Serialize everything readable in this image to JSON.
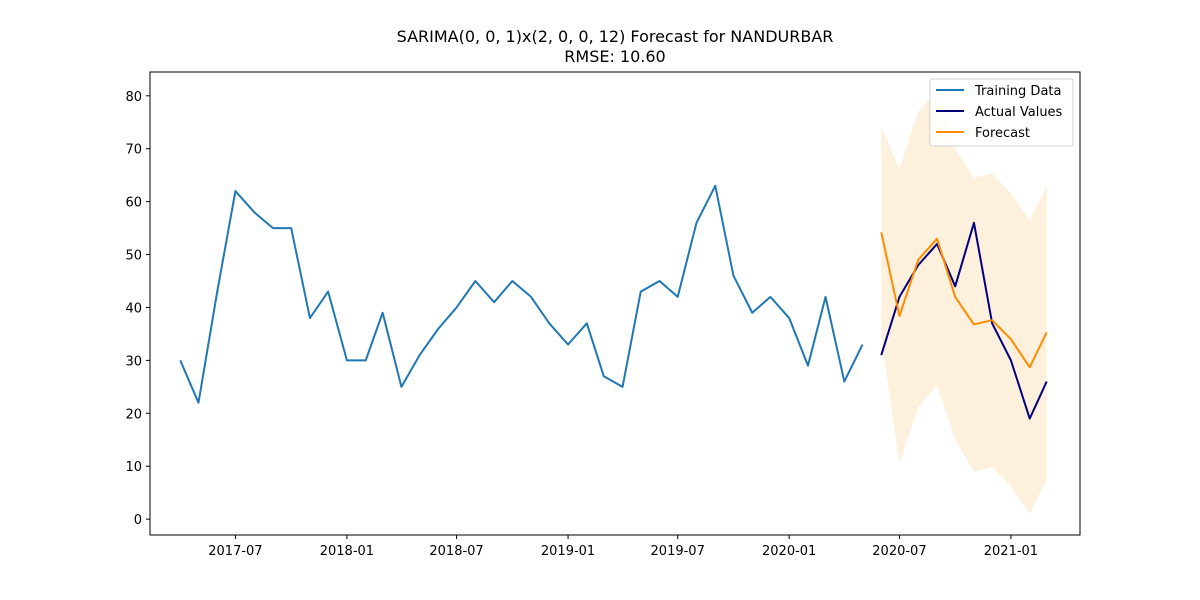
{
  "chart_data": {
    "type": "line",
    "title": "SARIMA(0, 0, 1)x(2, 0, 0, 12) Forecast for NANDURBAR",
    "subtitle": "RMSE: 10.60",
    "xlabel": "",
    "ylabel": "",
    "xlim": [
      "2017-02-10",
      "2021-04-25"
    ],
    "ylim": [
      -3,
      84.5
    ],
    "x_ticks": [
      "2017-07",
      "2018-01",
      "2018-07",
      "2019-01",
      "2019-07",
      "2020-01",
      "2020-07",
      "2021-01"
    ],
    "y_ticks": [
      0,
      10,
      20,
      30,
      40,
      50,
      60,
      70,
      80
    ],
    "grid": false,
    "legend_position": "top-right",
    "series": [
      {
        "name": "Training Data",
        "color": "#1f77b4",
        "x": [
          "2017-04",
          "2017-05",
          "2017-06",
          "2017-07",
          "2017-08",
          "2017-09",
          "2017-10",
          "2017-11",
          "2017-12",
          "2018-01",
          "2018-02",
          "2018-03",
          "2018-04",
          "2018-05",
          "2018-06",
          "2018-07",
          "2018-08",
          "2018-09",
          "2018-10",
          "2018-11",
          "2018-12",
          "2019-01",
          "2019-02",
          "2019-03",
          "2019-04",
          "2019-05",
          "2019-06",
          "2019-07",
          "2019-08",
          "2019-09",
          "2019-10",
          "2019-11",
          "2019-12",
          "2020-01",
          "2020-02",
          "2020-03",
          "2020-04",
          "2020-05"
        ],
        "values": [
          30,
          22,
          43,
          62,
          58,
          55,
          55,
          38,
          43,
          30,
          30,
          39,
          25,
          31,
          36,
          40,
          45,
          41,
          45,
          42,
          37,
          33,
          37,
          27,
          25,
          43,
          45,
          42,
          56,
          63,
          46,
          39,
          42,
          38,
          29,
          42,
          26,
          33
        ]
      },
      {
        "name": "Actual Values",
        "color": "#000080",
        "x": [
          "2020-06",
          "2020-07",
          "2020-08",
          "2020-09",
          "2020-10",
          "2020-11",
          "2020-12",
          "2021-01",
          "2021-02",
          "2021-03"
        ],
        "values": [
          31,
          42,
          48,
          52,
          44,
          56,
          37,
          30,
          19,
          26
        ]
      },
      {
        "name": "Forecast",
        "color": "#ff8c00",
        "x": [
          "2020-06",
          "2020-07",
          "2020-08",
          "2020-09",
          "2020-10",
          "2020-11",
          "2020-12",
          "2021-01",
          "2021-02",
          "2021-03"
        ],
        "values": [
          54.2,
          38.4,
          49,
          53,
          42,
          36.8,
          37.6,
          34,
          28.7,
          35.3
        ],
        "ci_lower": [
          34.5,
          10.5,
          21.2,
          25.2,
          15,
          9,
          9.8,
          6.2,
          1,
          7.5
        ],
        "ci_upper": [
          74,
          66.2,
          77,
          81,
          70,
          64.5,
          65.3,
          61.6,
          56.5,
          63
        ],
        "ci_color": "#fdf0dc"
      }
    ]
  }
}
